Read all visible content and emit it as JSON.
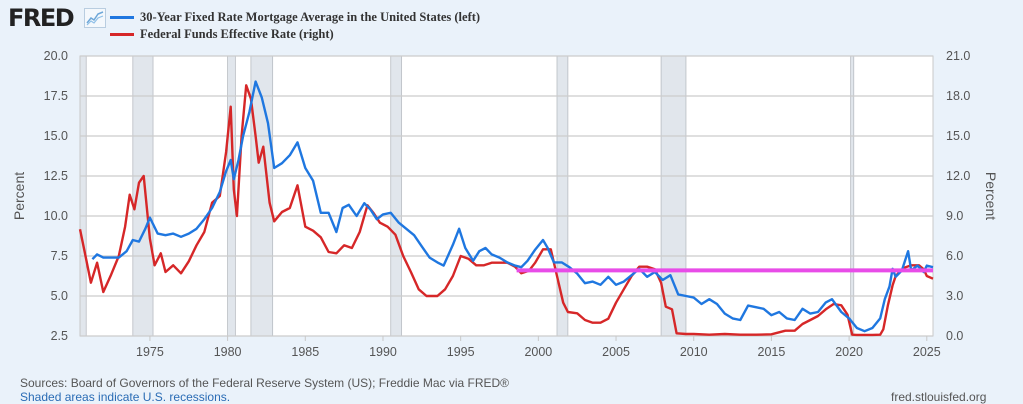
{
  "header": {
    "logo_text": "FRED",
    "logo_icon": "line-chart-icon"
  },
  "footer": {
    "sources": "Sources: Board of Governors of the Federal Reserve System (US); Freddie Mac via FRED®",
    "recession_note": "Shaded areas indicate U.S. recessions.",
    "url": "fred.stlouisfed.org"
  },
  "colors": {
    "mortgage": "#1f77e0",
    "fedfunds": "#d62728",
    "annotation": "#e84ce8",
    "recession": "#e1e6ec",
    "grid": "#cccccc",
    "background": "#eaf2fa"
  },
  "chart_data": {
    "type": "line",
    "title": "",
    "xlabel": "",
    "ylabel": "Percent",
    "ylabel_right": "Percent",
    "xlim": [
      1970.5,
      2025.4
    ],
    "ylim": [
      2.5,
      20.0
    ],
    "ylim_right": [
      0.0,
      21.0
    ],
    "grid": true,
    "legend_position": "top-left",
    "x_ticks": [
      "1975",
      "1980",
      "1985",
      "1990",
      "1995",
      "2000",
      "2005",
      "2010",
      "2015",
      "2020",
      "2025"
    ],
    "x_tick_values": [
      1975,
      1980,
      1985,
      1990,
      1995,
      2000,
      2005,
      2010,
      2015,
      2020,
      2025
    ],
    "y_ticks": [
      "2.5",
      "5.0",
      "7.5",
      "10.0",
      "12.5",
      "15.0",
      "17.5",
      "20.0"
    ],
    "y_tick_values": [
      2.5,
      5.0,
      7.5,
      10.0,
      12.5,
      15.0,
      17.5,
      20.0
    ],
    "y_ticks_right": [
      "0.0",
      "3.0",
      "6.0",
      "9.0",
      "12.0",
      "15.0",
      "18.0",
      "21.0"
    ],
    "y_tick_values_right": [
      0,
      3,
      6,
      9,
      12,
      15,
      18,
      21
    ],
    "recessions": [
      [
        1970.0,
        1970.9
      ],
      [
        1973.9,
        1975.2
      ],
      [
        1980.0,
        1980.5
      ],
      [
        1981.5,
        1982.9
      ],
      [
        1990.5,
        1991.2
      ],
      [
        2001.2,
        2001.9
      ],
      [
        2007.9,
        2009.5
      ],
      [
        2020.1,
        2020.3
      ]
    ],
    "series": [
      {
        "name": "30-Year Fixed Rate Mortgage Average in the United States (left)",
        "axis": "left",
        "x": [
          1971.3,
          1971.6,
          1972.0,
          1972.5,
          1973.0,
          1973.5,
          1973.9,
          1974.3,
          1974.7,
          1975.0,
          1975.5,
          1976.0,
          1976.5,
          1977.0,
          1977.5,
          1978.0,
          1978.5,
          1979.0,
          1979.5,
          1979.9,
          1980.2,
          1980.4,
          1980.7,
          1981.0,
          1981.4,
          1981.8,
          1982.2,
          1982.6,
          1983.0,
          1983.5,
          1984.0,
          1984.5,
          1985.0,
          1985.5,
          1986.0,
          1986.5,
          1987.0,
          1987.4,
          1987.8,
          1988.3,
          1988.8,
          1989.2,
          1989.6,
          1990.0,
          1990.5,
          1991.0,
          1991.5,
          1992.0,
          1992.5,
          1993.0,
          1993.5,
          1993.9,
          1994.5,
          1994.9,
          1995.3,
          1995.8,
          1996.2,
          1996.6,
          1997.0,
          1997.5,
          1998.0,
          1998.5,
          1998.9,
          1999.3,
          1999.8,
          2000.3,
          2000.6,
          2001.0,
          2001.5,
          2002.0,
          2002.5,
          2003.0,
          2003.5,
          2004.0,
          2004.5,
          2005.0,
          2005.5,
          2006.0,
          2006.5,
          2007.0,
          2007.5,
          2008.0,
          2008.5,
          2009.0,
          2009.5,
          2010.0,
          2010.5,
          2011.0,
          2011.5,
          2012.0,
          2012.5,
          2013.0,
          2013.5,
          2014.0,
          2014.5,
          2015.0,
          2015.5,
          2016.0,
          2016.5,
          2017.0,
          2017.5,
          2018.0,
          2018.5,
          2018.9,
          2019.5,
          2020.0,
          2020.5,
          2021.0,
          2021.5,
          2022.0,
          2022.3,
          2022.6,
          2022.8,
          2023.0,
          2023.4,
          2023.8,
          2024.0,
          2024.4,
          2024.8,
          2025.0,
          2025.4
        ],
        "values": [
          7.3,
          7.6,
          7.4,
          7.4,
          7.4,
          7.8,
          8.5,
          8.4,
          9.2,
          9.9,
          8.9,
          8.8,
          8.9,
          8.7,
          8.9,
          9.2,
          9.8,
          10.5,
          11.5,
          12.8,
          13.5,
          12.3,
          13.5,
          15.0,
          16.5,
          18.4,
          17.4,
          15.8,
          13.0,
          13.3,
          13.8,
          14.6,
          13.0,
          12.2,
          10.2,
          10.2,
          9.0,
          10.5,
          10.7,
          10.0,
          10.8,
          10.4,
          9.8,
          10.1,
          10.2,
          9.6,
          9.2,
          8.8,
          8.1,
          7.4,
          7.1,
          6.9,
          8.2,
          9.2,
          8.0,
          7.2,
          7.8,
          8.0,
          7.6,
          7.4,
          7.1,
          6.9,
          6.8,
          7.2,
          7.9,
          8.5,
          8.0,
          7.1,
          7.1,
          6.8,
          6.4,
          5.8,
          5.9,
          5.7,
          6.2,
          5.7,
          5.9,
          6.3,
          6.7,
          6.2,
          6.5,
          6.0,
          6.3,
          5.1,
          5.0,
          4.9,
          4.5,
          4.8,
          4.5,
          3.9,
          3.6,
          3.5,
          4.4,
          4.3,
          4.2,
          3.8,
          4.0,
          3.6,
          3.5,
          4.2,
          3.9,
          4.0,
          4.6,
          4.8,
          4.0,
          3.6,
          3.0,
          2.8,
          3.0,
          3.6,
          4.8,
          5.6,
          6.7,
          6.2,
          6.6,
          7.8,
          6.6,
          6.9,
          6.5,
          6.9,
          6.8
        ]
      },
      {
        "name": "Federal Funds Effective Rate (right)",
        "axis": "right",
        "x": [
          1970.5,
          1970.8,
          1971.2,
          1971.6,
          1972.0,
          1972.5,
          1973.0,
          1973.4,
          1973.7,
          1974.0,
          1974.3,
          1974.6,
          1975.0,
          1975.3,
          1975.7,
          1976.0,
          1976.5,
          1977.0,
          1977.5,
          1978.0,
          1978.5,
          1979.0,
          1979.5,
          1979.9,
          1980.2,
          1980.4,
          1980.6,
          1980.9,
          1981.2,
          1981.5,
          1981.8,
          1982.0,
          1982.3,
          1982.7,
          1983.0,
          1983.5,
          1984.0,
          1984.5,
          1985.0,
          1985.5,
          1986.0,
          1986.5,
          1987.0,
          1987.5,
          1988.0,
          1988.5,
          1989.0,
          1989.4,
          1989.8,
          1990.3,
          1990.8,
          1991.3,
          1991.8,
          1992.3,
          1992.8,
          1993.5,
          1994.0,
          1994.5,
          1995.0,
          1995.5,
          1996.0,
          1996.5,
          1997.0,
          1997.5,
          1998.0,
          1998.5,
          1998.9,
          1999.4,
          1999.8,
          2000.3,
          2000.8,
          2001.2,
          2001.6,
          2001.9,
          2002.5,
          2003.0,
          2003.5,
          2004.0,
          2004.5,
          2005.0,
          2005.5,
          2006.0,
          2006.5,
          2007.0,
          2007.5,
          2007.9,
          2008.2,
          2008.6,
          2008.9,
          2009.5,
          2010.0,
          2011.0,
          2012.0,
          2013.0,
          2014.0,
          2015.0,
          2015.9,
          2016.5,
          2017.0,
          2017.5,
          2018.0,
          2018.5,
          2019.0,
          2019.5,
          2019.9,
          2020.2,
          2020.5,
          2021.0,
          2021.5,
          2022.0,
          2022.2,
          2022.5,
          2022.8,
          2023.0,
          2023.5,
          2024.0,
          2024.5,
          2024.8,
          2025.0,
          2025.4
        ],
        "values": [
          8.0,
          6.3,
          4.0,
          5.5,
          3.3,
          4.6,
          6.0,
          8.2,
          10.6,
          9.5,
          11.5,
          12.0,
          7.3,
          5.3,
          6.2,
          4.8,
          5.3,
          4.7,
          5.6,
          6.8,
          7.8,
          10.0,
          10.5,
          13.8,
          17.2,
          11.0,
          9.0,
          15.0,
          18.8,
          17.8,
          15.0,
          13.0,
          14.2,
          10.0,
          8.6,
          9.3,
          9.6,
          11.3,
          8.2,
          7.9,
          7.4,
          6.3,
          6.2,
          6.8,
          6.6,
          7.8,
          9.8,
          9.2,
          8.5,
          8.2,
          7.6,
          6.0,
          4.8,
          3.5,
          3.0,
          3.0,
          3.5,
          4.5,
          6.0,
          5.8,
          5.3,
          5.3,
          5.5,
          5.5,
          5.5,
          5.2,
          4.7,
          4.9,
          5.5,
          6.5,
          6.5,
          4.5,
          2.5,
          1.8,
          1.7,
          1.2,
          1.0,
          1.0,
          1.3,
          2.5,
          3.5,
          4.5,
          5.2,
          5.2,
          5.0,
          4.0,
          2.2,
          2.0,
          0.2,
          0.15,
          0.15,
          0.1,
          0.15,
          0.1,
          0.1,
          0.13,
          0.4,
          0.4,
          0.9,
          1.2,
          1.5,
          2.0,
          2.4,
          2.3,
          1.6,
          0.1,
          0.08,
          0.08,
          0.08,
          0.1,
          0.5,
          2.3,
          3.8,
          4.5,
          5.1,
          5.3,
          5.3,
          5.0,
          4.5,
          4.3
        ]
      }
    ],
    "annotations": [
      {
        "type": "horizontal-line",
        "axis": "left",
        "y": 6.6,
        "x_start": 1998.6,
        "x_end": 2025.4
      }
    ]
  }
}
